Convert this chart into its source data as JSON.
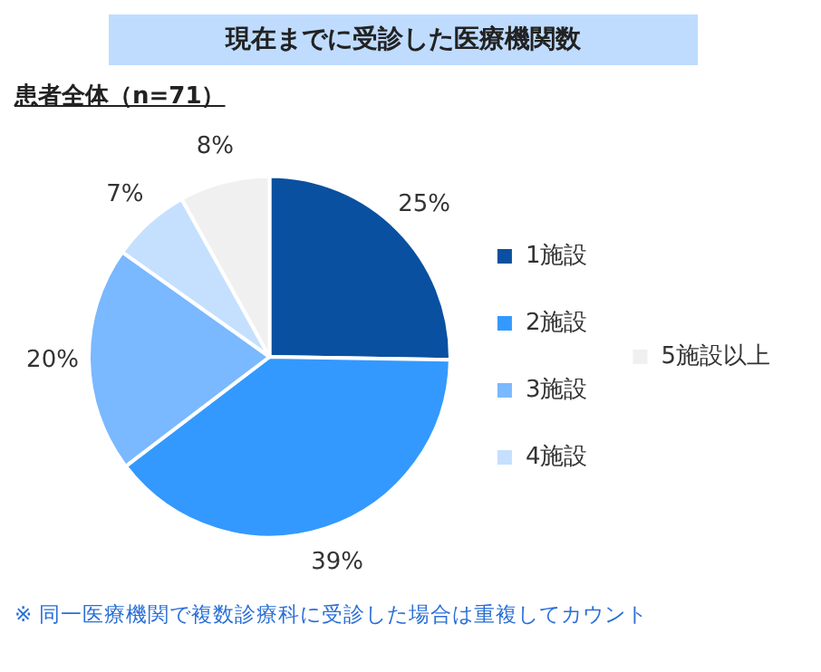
{
  "chart_data": {
    "type": "pie",
    "title": "現在までに受診した医療機関数",
    "subtitle": "患者全体（n=71）",
    "categories": [
      "1施設",
      "2施設",
      "3施設",
      "4施設",
      "5施設以上"
    ],
    "values": [
      25,
      39,
      20,
      7,
      8
    ],
    "value_labels": [
      "25%",
      "39%",
      "20%",
      "7%",
      "8%"
    ],
    "colors": [
      "#0a50a0",
      "#3399ff",
      "#7ab8ff",
      "#c5e0ff",
      "#f0f0f0"
    ],
    "legend": "right",
    "annotations": [
      "※ 同一医療機関で複数診療科に受診した場合は重複してカウント"
    ]
  }
}
